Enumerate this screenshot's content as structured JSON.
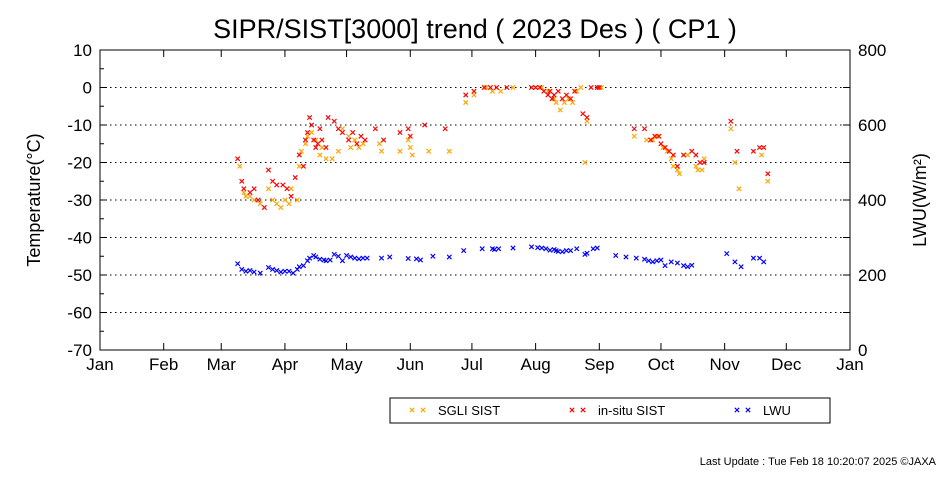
{
  "chart_data": {
    "type": "scatter",
    "title": "SIPR/SIST[3000] trend ( 2023 Des ) ( CP1 )",
    "ylabel": "Temperature(°C)",
    "y2label": "LWU(W/m²)",
    "x_ticks": [
      "Jan",
      "Feb",
      "Mar",
      "Apr",
      "May",
      "Jun",
      "Jul",
      "Aug",
      "Sep",
      "Oct",
      "Nov",
      "Dec",
      "Jan"
    ],
    "y_ticks": [
      "10",
      "0",
      "-10",
      "-20",
      "-30",
      "-40",
      "-50",
      "-60",
      "-70"
    ],
    "y2_ticks": [
      "800",
      "600",
      "400",
      "200",
      "0"
    ],
    "ylim": [
      -70,
      10
    ],
    "y2lim": [
      0,
      800
    ],
    "xlim": [
      0,
      365
    ],
    "grid": true,
    "legend_position": "bottom-right",
    "series": [
      {
        "name": "SGLI SIST",
        "color": "#ffa500",
        "axis": "left",
        "marker": "x",
        "points": [
          [
            68,
            -21
          ],
          [
            70,
            -28
          ],
          [
            71,
            -29
          ],
          [
            73,
            -29
          ],
          [
            75,
            -30
          ],
          [
            78,
            -31
          ],
          [
            82,
            -27
          ],
          [
            84,
            -30
          ],
          [
            86,
            -31
          ],
          [
            88,
            -32
          ],
          [
            90,
            -30
          ],
          [
            92,
            -31
          ],
          [
            93,
            -27
          ],
          [
            96,
            -30
          ],
          [
            97,
            -21
          ],
          [
            98,
            -17
          ],
          [
            100,
            -15
          ],
          [
            101,
            -13
          ],
          [
            103,
            -12
          ],
          [
            105,
            -14
          ],
          [
            107,
            -18
          ],
          [
            108,
            -16
          ],
          [
            110,
            -19
          ],
          [
            113,
            -19
          ],
          [
            116,
            -17
          ],
          [
            118,
            -11
          ],
          [
            121,
            -13
          ],
          [
            122,
            -16
          ],
          [
            124,
            -14
          ],
          [
            126,
            -16
          ],
          [
            128,
            -15
          ],
          [
            136,
            -15
          ],
          [
            137,
            -17
          ],
          [
            146,
            -17
          ],
          [
            150,
            -14
          ],
          [
            151,
            -16
          ],
          [
            152,
            -18
          ],
          [
            160,
            -17
          ],
          [
            170,
            -17
          ],
          [
            178,
            -4
          ],
          [
            182,
            -2
          ],
          [
            188,
            0
          ],
          [
            191,
            -1
          ],
          [
            193,
            0
          ],
          [
            195,
            -1
          ],
          [
            201,
            0
          ],
          [
            212,
            0
          ],
          [
            215,
            0
          ],
          [
            218,
            -1
          ],
          [
            221,
            -3
          ],
          [
            222,
            -4
          ],
          [
            224,
            -6
          ],
          [
            226,
            -4
          ],
          [
            228,
            -3
          ],
          [
            230,
            -4
          ],
          [
            232,
            -1
          ],
          [
            234,
            0
          ],
          [
            236,
            -20
          ],
          [
            237,
            -9
          ],
          [
            242,
            0
          ],
          [
            244,
            0
          ],
          [
            260,
            -13
          ],
          [
            266,
            -14
          ],
          [
            269,
            -14
          ],
          [
            271,
            -13
          ],
          [
            274,
            -16
          ],
          [
            276,
            -17
          ],
          [
            278,
            -19
          ],
          [
            279,
            -21
          ],
          [
            281,
            -22
          ],
          [
            282,
            -23
          ],
          [
            286,
            -18
          ],
          [
            290,
            -21
          ],
          [
            291,
            -22
          ],
          [
            293,
            -22
          ],
          [
            294,
            -19
          ],
          [
            307,
            -11
          ],
          [
            309,
            -20
          ],
          [
            311,
            -27
          ],
          [
            322,
            -18
          ],
          [
            325,
            -25
          ]
        ]
      },
      {
        "name": "in-situ SIST",
        "color": "#ff0000",
        "axis": "left",
        "marker": "x",
        "points": [
          [
            67,
            -19
          ],
          [
            69,
            -25
          ],
          [
            70,
            -27
          ],
          [
            73,
            -28
          ],
          [
            75,
            -27
          ],
          [
            77,
            -30
          ],
          [
            80,
            -32
          ],
          [
            82,
            -22
          ],
          [
            84,
            -25
          ],
          [
            86,
            -26
          ],
          [
            89,
            -26
          ],
          [
            91,
            -27
          ],
          [
            93,
            -29
          ],
          [
            95,
            -24
          ],
          [
            97,
            -18
          ],
          [
            99,
            -21
          ],
          [
            100,
            -14
          ],
          [
            101,
            -12
          ],
          [
            102,
            -8
          ],
          [
            103,
            -10
          ],
          [
            104,
            -14
          ],
          [
            105,
            -16
          ],
          [
            106,
            -15
          ],
          [
            107,
            -11
          ],
          [
            108,
            -14
          ],
          [
            110,
            -16
          ],
          [
            111,
            -8
          ],
          [
            114,
            -9
          ],
          [
            116,
            -11
          ],
          [
            118,
            -12
          ],
          [
            121,
            -14
          ],
          [
            123,
            -12
          ],
          [
            125,
            -15
          ],
          [
            127,
            -13
          ],
          [
            129,
            -14
          ],
          [
            134,
            -11
          ],
          [
            138,
            -14
          ],
          [
            146,
            -12
          ],
          [
            150,
            -11
          ],
          [
            151,
            -13
          ],
          [
            158,
            -10
          ],
          [
            168,
            -11
          ],
          [
            178,
            -2
          ],
          [
            182,
            -1
          ],
          [
            187,
            0
          ],
          [
            190,
            0
          ],
          [
            193,
            0
          ],
          [
            198,
            0
          ],
          [
            210,
            0
          ],
          [
            212,
            0
          ],
          [
            214,
            0
          ],
          [
            216,
            -1
          ],
          [
            218,
            -2
          ],
          [
            219,
            -1
          ],
          [
            220,
            -3
          ],
          [
            221,
            -2
          ],
          [
            223,
            -1
          ],
          [
            225,
            -3
          ],
          [
            227,
            -2
          ],
          [
            229,
            -3
          ],
          [
            231,
            -1
          ],
          [
            235,
            -7
          ],
          [
            237,
            -8
          ],
          [
            239,
            0
          ],
          [
            242,
            0
          ],
          [
            243,
            0
          ],
          [
            260,
            -11
          ],
          [
            265,
            -11
          ],
          [
            268,
            -14
          ],
          [
            270,
            -13
          ],
          [
            272,
            -13
          ],
          [
            273,
            -15
          ],
          [
            275,
            -16
          ],
          [
            277,
            -17
          ],
          [
            279,
            -18
          ],
          [
            281,
            -21
          ],
          [
            284,
            -18
          ],
          [
            288,
            -17
          ],
          [
            290,
            -18
          ],
          [
            292,
            -20
          ],
          [
            294,
            -20
          ],
          [
            307,
            -9
          ],
          [
            310,
            -17
          ],
          [
            318,
            -17
          ],
          [
            321,
            -16
          ],
          [
            323,
            -16
          ],
          [
            325,
            -23
          ]
        ]
      },
      {
        "name": "LWU",
        "color": "#0000ff",
        "axis": "right",
        "marker": "x",
        "points": [
          [
            67,
            230
          ],
          [
            69,
            215
          ],
          [
            71,
            210
          ],
          [
            73,
            212
          ],
          [
            75,
            208
          ],
          [
            78,
            205
          ],
          [
            82,
            220
          ],
          [
            84,
            215
          ],
          [
            86,
            212
          ],
          [
            88,
            208
          ],
          [
            90,
            210
          ],
          [
            92,
            210
          ],
          [
            94,
            205
          ],
          [
            96,
            215
          ],
          [
            97,
            222
          ],
          [
            99,
            225
          ],
          [
            101,
            238
          ],
          [
            102,
            245
          ],
          [
            104,
            252
          ],
          [
            105,
            248
          ],
          [
            107,
            242
          ],
          [
            109,
            240
          ],
          [
            110,
            238
          ],
          [
            112,
            240
          ],
          [
            114,
            255
          ],
          [
            116,
            250
          ],
          [
            118,
            238
          ],
          [
            120,
            252
          ],
          [
            122,
            248
          ],
          [
            124,
            245
          ],
          [
            126,
            243
          ],
          [
            128,
            245
          ],
          [
            130,
            245
          ],
          [
            137,
            245
          ],
          [
            141,
            248
          ],
          [
            150,
            244
          ],
          [
            154,
            243
          ],
          [
            156,
            240
          ],
          [
            162,
            250
          ],
          [
            170,
            248
          ],
          [
            177,
            265
          ],
          [
            186,
            270
          ],
          [
            191,
            270
          ],
          [
            192,
            268
          ],
          [
            194,
            270
          ],
          [
            201,
            272
          ],
          [
            210,
            275
          ],
          [
            213,
            273
          ],
          [
            215,
            272
          ],
          [
            217,
            270
          ],
          [
            219,
            266
          ],
          [
            221,
            268
          ],
          [
            222,
            265
          ],
          [
            223,
            263
          ],
          [
            225,
            262
          ],
          [
            227,
            265
          ],
          [
            229,
            265
          ],
          [
            232,
            270
          ],
          [
            236,
            255
          ],
          [
            237,
            258
          ],
          [
            240,
            270
          ],
          [
            242,
            272
          ],
          [
            251,
            252
          ],
          [
            256,
            248
          ],
          [
            261,
            245
          ],
          [
            265,
            242
          ],
          [
            267,
            238
          ],
          [
            269,
            235
          ],
          [
            271,
            238
          ],
          [
            273,
            240
          ],
          [
            275,
            225
          ],
          [
            278,
            235
          ],
          [
            281,
            232
          ],
          [
            284,
            225
          ],
          [
            286,
            222
          ],
          [
            288,
            226
          ],
          [
            305,
            257
          ],
          [
            309,
            235
          ],
          [
            312,
            222
          ],
          [
            318,
            245
          ],
          [
            321,
            245
          ],
          [
            323,
            235
          ]
        ]
      }
    ]
  },
  "footer": {
    "last_update": "Last Update : Tue Feb 18 10:20:07 2025  ©JAXA"
  }
}
